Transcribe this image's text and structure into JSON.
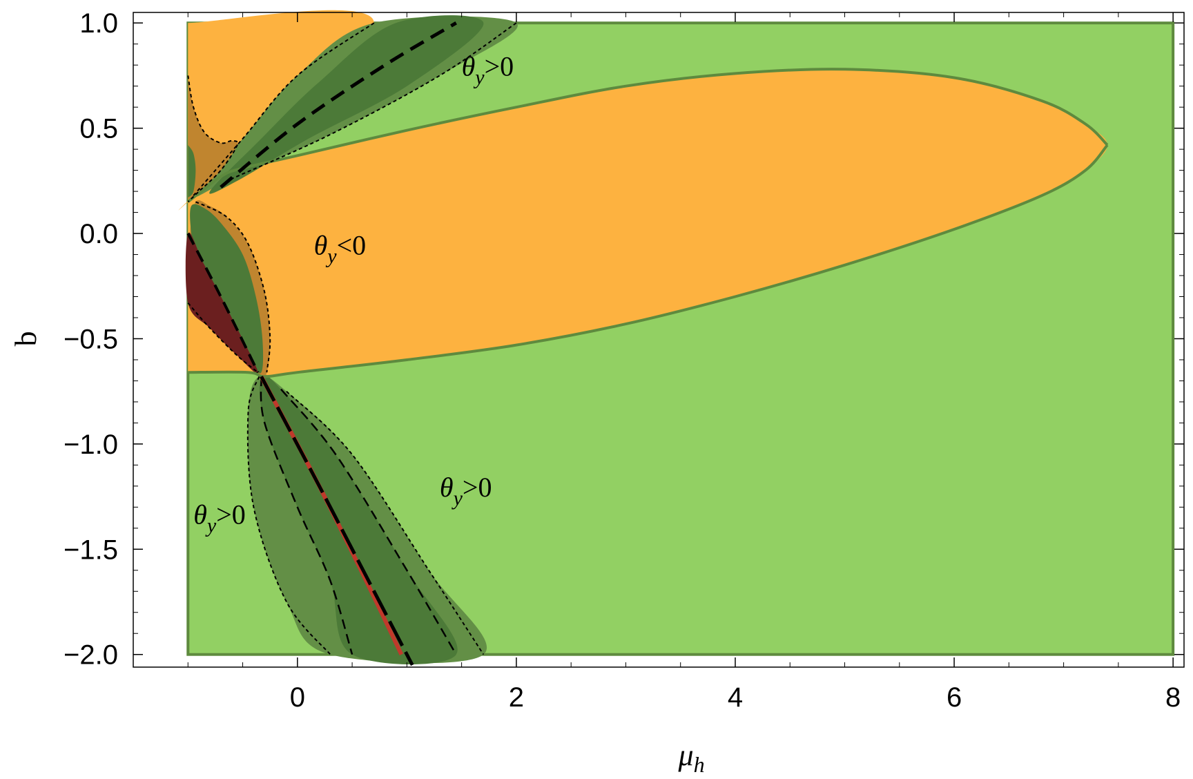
{
  "chart_data": {
    "type": "contour-region",
    "title": "",
    "xlabel": "μ",
    "xlabel_sub": "h",
    "ylabel": "b",
    "xlim": [
      -1.5,
      8.1
    ],
    "ylim": [
      -2.06,
      1.05
    ],
    "plot_xrange": [
      -1,
      8
    ],
    "plot_yrange": [
      -2,
      1
    ],
    "x_ticks": [
      {
        "value": 0,
        "label": "0"
      },
      {
        "value": 2,
        "label": "2"
      },
      {
        "value": 4,
        "label": "4"
      },
      {
        "value": 6,
        "label": "6"
      },
      {
        "value": 8,
        "label": "8"
      }
    ],
    "y_ticks": [
      {
        "value": 1.0,
        "label": "1.0"
      },
      {
        "value": 0.5,
        "label": "0.5"
      },
      {
        "value": 0.0,
        "label": "0.0"
      },
      {
        "value": -0.5,
        "label": "−0.5"
      },
      {
        "value": -1.0,
        "label": "−1.0"
      },
      {
        "value": -1.5,
        "label": "−1.5"
      },
      {
        "value": -2.0,
        "label": "−2.0"
      }
    ],
    "grid": false,
    "colors": {
      "positive": "#92d063",
      "negative": "#fdb240",
      "band_mid": "#638f46",
      "band_dark": "#4c7a38",
      "brown": "#c0852f",
      "darkred": "#6b1f1f",
      "red_line": "#c0392b",
      "edge": "#5e8a3e"
    },
    "regions": [
      {
        "name": "theta_y_negative_lobe",
        "sign": "negative",
        "text_sym": "θ",
        "text_sub": "y",
        "text_rel": "<0",
        "label_at": [
          0.15,
          -0.1
        ]
      },
      {
        "name": "theta_y_positive_upper",
        "sign": "positive",
        "text_sym": "θ",
        "text_sub": "y",
        "text_rel": ">0",
        "label_at": [
          1.5,
          0.75
        ]
      },
      {
        "name": "theta_y_positive_lower_right",
        "sign": "positive",
        "text_sym": "θ",
        "text_sub": "y",
        "text_rel": ">0",
        "label_at": [
          1.3,
          -1.25
        ]
      },
      {
        "name": "theta_y_positive_lower_left",
        "sign": "positive",
        "text_sym": "θ",
        "text_sub": "y",
        "text_rel": ">0",
        "label_at": [
          -0.95,
          -1.38
        ]
      }
    ],
    "negative_lobe_boundary": {
      "upper": [
        [
          -1,
          0.15
        ],
        [
          -0.7,
          0.27
        ],
        [
          -0.5,
          0.31
        ],
        [
          0,
          0.37
        ],
        [
          1,
          0.49
        ],
        [
          2,
          0.6
        ],
        [
          3,
          0.7
        ],
        [
          4,
          0.76
        ],
        [
          5,
          0.78
        ],
        [
          6,
          0.74
        ],
        [
          6.8,
          0.63
        ],
        [
          7.2,
          0.52
        ],
        [
          7.4,
          0.42
        ]
      ],
      "lower": [
        [
          7.4,
          0.42
        ],
        [
          7.2,
          0.3
        ],
        [
          6.8,
          0.18
        ],
        [
          6,
          0.02
        ],
        [
          5,
          -0.15
        ],
        [
          4,
          -0.3
        ],
        [
          3,
          -0.43
        ],
        [
          2,
          -0.53
        ],
        [
          1,
          -0.6
        ],
        [
          0,
          -0.66
        ],
        [
          -0.3,
          -0.68
        ],
        [
          -0.45,
          -0.66
        ],
        [
          -1,
          -0.66
        ]
      ]
    },
    "upper_band": {
      "outer": [
        [
          -0.95,
          0.18
        ],
        [
          -0.5,
          0.45
        ],
        [
          0,
          0.75
        ],
        [
          0.7,
          1.0
        ],
        [
          2.0,
          1.0
        ],
        [
          1.3,
          0.75
        ],
        [
          0.3,
          0.47
        ],
        [
          -0.6,
          0.26
        ]
      ],
      "inner": [
        [
          -0.8,
          0.2
        ],
        [
          -0.35,
          0.44
        ],
        [
          0.2,
          0.72
        ],
        [
          0.9,
          1.0
        ],
        [
          1.7,
          1.0
        ],
        [
          1.0,
          0.7
        ],
        [
          0.1,
          0.45
        ],
        [
          -0.55,
          0.25
        ]
      ],
      "center_dashed": [
        [
          -0.7,
          0.22
        ],
        [
          0,
          0.52
        ],
        [
          0.8,
          0.8
        ],
        [
          1.45,
          1.0
        ]
      ],
      "dotted_edges": [
        [
          [
            -0.95,
            0.18
          ],
          [
            -0.5,
            0.45
          ],
          [
            0,
            0.75
          ],
          [
            0.7,
            1.0
          ]
        ],
        [
          [
            2.0,
            1.0
          ],
          [
            1.3,
            0.75
          ],
          [
            0.3,
            0.47
          ],
          [
            -0.6,
            0.26
          ]
        ]
      ]
    },
    "upper_left_brown": {
      "outline": [
        [
          -1,
          0.75
        ],
        [
          -0.95,
          0.6
        ],
        [
          -0.85,
          0.48
        ],
        [
          -0.7,
          0.43
        ],
        [
          -0.6,
          0.44
        ],
        [
          -0.55,
          0.42
        ],
        [
          -0.7,
          0.3
        ],
        [
          -0.9,
          0.2
        ],
        [
          -1,
          0.15
        ]
      ],
      "green_sliver": [
        [
          -1,
          0.42
        ],
        [
          -0.95,
          0.38
        ],
        [
          -0.93,
          0.3
        ],
        [
          -0.95,
          0.2
        ],
        [
          -1,
          0.17
        ]
      ]
    },
    "lower_band": {
      "light_outer": [
        [
          -0.35,
          -0.68
        ],
        [
          -0.45,
          -0.85
        ],
        [
          -0.4,
          -1.3
        ],
        [
          -0.1,
          -1.75
        ],
        [
          0.3,
          -2.0
        ],
        [
          1.7,
          -2.0
        ],
        [
          1.2,
          -1.6
        ],
        [
          0.5,
          -1.05
        ],
        [
          -0.1,
          -0.75
        ]
      ],
      "dark_inner": [
        [
          -0.33,
          -0.68
        ],
        [
          -0.3,
          -0.9
        ],
        [
          0.0,
          -1.3
        ],
        [
          0.3,
          -1.65
        ],
        [
          0.5,
          -2.0
        ],
        [
          1.45,
          -2.0
        ],
        [
          1.0,
          -1.6
        ],
        [
          0.35,
          -1.05
        ],
        [
          -0.15,
          -0.74
        ]
      ],
      "dashed_edges": [
        [
          [
            -0.33,
            -0.68
          ],
          [
            -0.3,
            -0.9
          ],
          [
            0.0,
            -1.3
          ],
          [
            0.3,
            -1.65
          ],
          [
            0.5,
            -2.0
          ]
        ],
        [
          [
            -0.15,
            -0.74
          ],
          [
            0.35,
            -1.05
          ],
          [
            1.0,
            -1.6
          ],
          [
            1.45,
            -2.0
          ]
        ]
      ],
      "dotted_edges": [
        [
          [
            -0.35,
            -0.68
          ],
          [
            -0.45,
            -0.85
          ],
          [
            -0.4,
            -1.3
          ],
          [
            -0.1,
            -1.75
          ],
          [
            0.3,
            -2.0
          ]
        ],
        [
          [
            -0.1,
            -0.75
          ],
          [
            0.5,
            -1.05
          ],
          [
            1.2,
            -1.6
          ],
          [
            1.7,
            -2.0
          ]
        ]
      ],
      "solid_line": [
        [
          -0.33,
          -0.68
        ],
        [
          0.2,
          -1.2
        ],
        [
          0.7,
          -1.7
        ],
        [
          1.05,
          -2.05
        ]
      ],
      "red_line": [
        [
          -0.33,
          -0.68
        ],
        [
          0.15,
          -1.15
        ],
        [
          0.6,
          -1.62
        ],
        [
          0.95,
          -2.0
        ]
      ]
    },
    "left_band": {
      "brown_outer": [
        [
          -0.93,
          0.15
        ],
        [
          -0.8,
          0.13
        ],
        [
          -0.65,
          0.08
        ],
        [
          -0.45,
          -0.05
        ],
        [
          -0.3,
          -0.28
        ],
        [
          -0.25,
          -0.5
        ],
        [
          -0.28,
          -0.66
        ],
        [
          -0.35,
          -0.68
        ],
        [
          -0.6,
          -0.5
        ],
        [
          -0.85,
          -0.32
        ],
        [
          -0.95,
          -0.15
        ],
        [
          -0.98,
          0.0
        ]
      ],
      "green_inner": [
        [
          -0.97,
          0.13
        ],
        [
          -0.85,
          0.12
        ],
        [
          -0.7,
          0.05
        ],
        [
          -0.5,
          -0.1
        ],
        [
          -0.38,
          -0.3
        ],
        [
          -0.32,
          -0.5
        ],
        [
          -0.33,
          -0.66
        ],
        [
          -0.45,
          -0.6
        ],
        [
          -0.7,
          -0.4
        ],
        [
          -0.9,
          -0.2
        ],
        [
          -0.97,
          0.0
        ]
      ],
      "darkred": [
        [
          -1,
          0.0
        ],
        [
          -0.85,
          -0.15
        ],
        [
          -0.6,
          -0.4
        ],
        [
          -0.36,
          -0.66
        ],
        [
          -0.55,
          -0.58
        ],
        [
          -0.8,
          -0.45
        ],
        [
          -1,
          -0.33
        ]
      ],
      "dashed_center": [
        [
          -1,
          0.0
        ],
        [
          -0.7,
          -0.3
        ],
        [
          -0.36,
          -0.66
        ]
      ],
      "dotted_edges": [
        [
          [
            -0.93,
            0.15
          ],
          [
            -0.65,
            0.08
          ],
          [
            -0.45,
            -0.05
          ],
          [
            -0.3,
            -0.28
          ],
          [
            -0.25,
            -0.5
          ],
          [
            -0.28,
            -0.66
          ]
        ],
        [
          [
            -1,
            -0.33
          ],
          [
            -0.8,
            -0.45
          ],
          [
            -0.55,
            -0.58
          ],
          [
            -0.36,
            -0.66
          ]
        ]
      ]
    }
  }
}
